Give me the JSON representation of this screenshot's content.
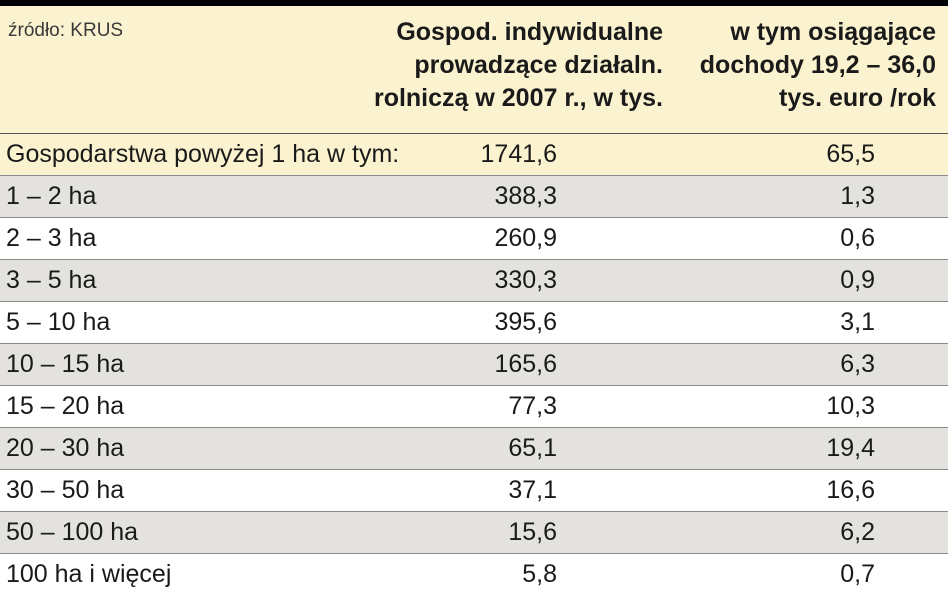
{
  "chart_data": {
    "type": "table",
    "source": "źródło: KRUS",
    "columns": [
      {
        "lines": [
          "Gospod. indywidualne",
          "prowadzące działaln.",
          "rolniczą w 2007 r., w tys."
        ]
      },
      {
        "lines": [
          "w tym osiągające",
          "dochody 19,2 – 36,0",
          "tys. euro /rok"
        ]
      }
    ],
    "rows": [
      {
        "label": "Gospodarstwa powyżej 1 ha w tym:",
        "v1": "1741,6",
        "v2": "65,5",
        "total": true
      },
      {
        "label": "1 – 2 ha",
        "v1": "388,3",
        "v2": "1,3"
      },
      {
        "label": "2 – 3 ha",
        "v1": "260,9",
        "v2": "0,6"
      },
      {
        "label": "3 – 5 ha",
        "v1": "330,3",
        "v2": "0,9"
      },
      {
        "label": "5 – 10 ha",
        "v1": "395,6",
        "v2": "3,1"
      },
      {
        "label": "10 – 15 ha",
        "v1": "165,6",
        "v2": "6,3"
      },
      {
        "label": "15 – 20 ha",
        "v1": "77,3",
        "v2": "10,3"
      },
      {
        "label": "20 – 30 ha",
        "v1": "65,1",
        "v2": "19,4"
      },
      {
        "label": "30 – 50 ha",
        "v1": "37,1",
        "v2": "16,6"
      },
      {
        "label": "50 – 100 ha",
        "v1": "15,6",
        "v2": "6,2"
      },
      {
        "label": "100 ha i więcej",
        "v1": "5,8",
        "v2": "0,7"
      }
    ]
  },
  "colors": {
    "header_bg": "#fbf3cf",
    "total_row_bg": "#fbf3cf",
    "alt_row_bg": "#e3e2de",
    "plain_row_bg": "#ffffff",
    "top_rule": "#000000"
  }
}
